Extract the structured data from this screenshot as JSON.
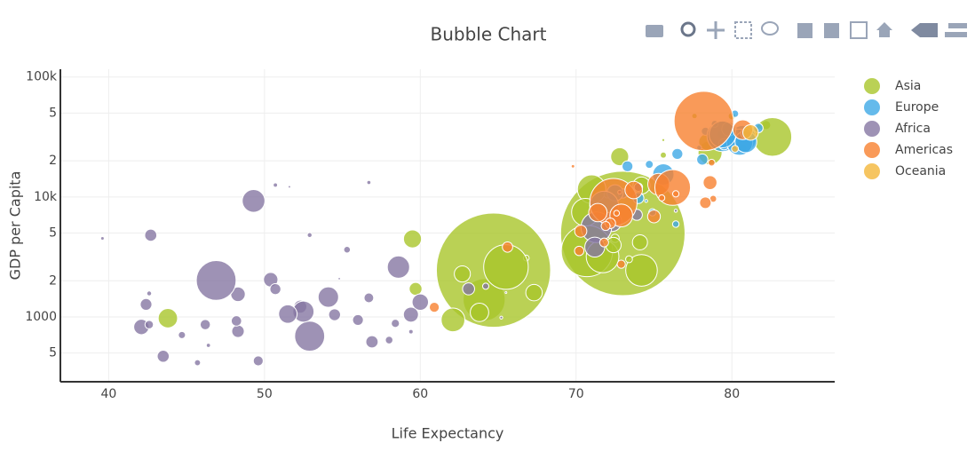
{
  "chart_data": {
    "type": "scatter",
    "title": "Bubble Chart",
    "x_label": "Life Expectancy",
    "y_label": "GDP per Capita",
    "xlim": [
      36.9,
      86.6
    ],
    "xticks": [
      40,
      50,
      60,
      70,
      80
    ],
    "ylim": [
      288,
      116000
    ],
    "log_y": true,
    "grid": true,
    "legend": "right",
    "yticks": [
      {
        "value": 500,
        "label": "5"
      },
      1000,
      {
        "value": 2000,
        "label": "2"
      },
      {
        "value": 5000,
        "label": "5"
      },
      {
        "value": 10000,
        "label": "10k"
      },
      {
        "value": 20000,
        "label": "2"
      },
      {
        "value": 50000,
        "label": "5"
      },
      {
        "value": 100000,
        "label": "100k"
      }
    ],
    "series": [
      {
        "name": "Asia",
        "color": "#a9c62b",
        "x": [
          43.8,
          75.6,
          64.1,
          59.7,
          73.0,
          82.2,
          64.7,
          70.7,
          71.0,
          59.5,
          80.7,
          82.6,
          72.5,
          67.3,
          78.6,
          77.6,
          72.0,
          74.2,
          66.8,
          62.1,
          63.8,
          75.6,
          65.5,
          71.7,
          72.8,
          80.0,
          72.4,
          74.1,
          78.4,
          70.6,
          74.2,
          73.4,
          62.7
        ],
        "values": [
          975,
          29796,
          1391,
          1714,
          4959,
          39725,
          2452,
          3541,
          11606,
          4471,
          25523,
          31656,
          4519,
          1593,
          23348,
          47307,
          10461,
          12452,
          3096,
          944,
          1091,
          22316,
          2606,
          3190,
          21655,
          47143,
          3970,
          4185,
          28718,
          7458,
          2442,
          3025,
          2281
        ],
        "sizes": [
          31.9,
          0.7,
          150,
          14,
          1318,
          7,
          1110,
          224,
          69,
          27.5,
          6.4,
          127,
          6,
          23,
          49,
          2.5,
          3.9,
          24.8,
          2.9,
          47.8,
          28.9,
          3.2,
          169,
          91,
          27.6,
          4.5,
          20,
          19.3,
          23,
          65,
          85,
          4,
          22
        ]
      },
      {
        "name": "Europe",
        "color": "#3fa9e6",
        "x": [
          76.4,
          79.8,
          79.4,
          74.9,
          73.0,
          75.7,
          76.5,
          78.3,
          79.3,
          80.7,
          79.4,
          79.5,
          73.3,
          81.8,
          78.9,
          80.5,
          74.5,
          79.8,
          80.2,
          75.6,
          78.1,
          72.5,
          74.0,
          74.7,
          77.9,
          80.9,
          80.9,
          81.7,
          71.8,
          79.4
        ],
        "values": [
          5937,
          36126,
          33693,
          7446,
          10681,
          14619,
          22833,
          35278,
          33207,
          30470,
          32170,
          27538,
          18009,
          36181,
          40676,
          28570,
          9254,
          36798,
          49357,
          15390,
          20510,
          10808,
          9787,
          18678,
          25768,
          28821,
          33860,
          37506,
          8458,
          33203
        ],
        "sizes": [
          3.6,
          8.2,
          10.4,
          4.5,
          7.3,
          4.5,
          10.2,
          5.5,
          5.2,
          61,
          82,
          10.7,
          10,
          0.3,
          4.1,
          58,
          0.7,
          16.6,
          4.6,
          38.5,
          10.6,
          22.3,
          10.2,
          5.4,
          2,
          40.4,
          9,
          7.6,
          71,
          60.8
        ]
      },
      {
        "name": "Africa",
        "color": "#8677a3",
        "x": [
          72.3,
          42.7,
          56.7,
          50.7,
          52.3,
          49.6,
          50.4,
          44.7,
          50.7,
          65.2,
          55.3,
          48.3,
          54.8,
          71.3,
          51.6,
          58.0,
          52.9,
          56.7,
          59.4,
          60.0,
          56.0,
          46.4,
          54.1,
          42.6,
          45.7,
          74.0,
          59.4,
          48.3,
          54.5,
          64.2,
          72.8,
          71.2,
          42.1,
          52.9,
          56.9,
          46.9,
          76.4,
          46.2,
          65.5,
          63.1,
          42.6,
          48.2,
          49.3,
          58.6,
          39.6,
          52.5,
          58.4,
          73.9,
          51.5,
          42.4,
          43.5
        ],
        "values": [
          6223,
          4797,
          1441,
          12570,
          1217,
          430,
          2042,
          706,
          1704,
          986,
          3633,
          1545,
          2082,
          5581,
          12154,
          641,
          691,
          13206,
          753,
          1328,
          943,
          579,
          1463,
          1569,
          415,
          12057,
          1044,
          759,
          1042,
          1803,
          10957,
          3820,
          824,
          4811,
          620,
          2014,
          7670,
          863,
          1598,
          1712,
          863,
          926,
          9270,
          2602,
          4513,
          1107,
          883,
          7093,
          1056,
          1271,
          470
        ],
        "sizes": [
          33,
          12.4,
          8,
          1.6,
          14.3,
          8.4,
          17.7,
          4.4,
          10.2,
          0.7,
          3.8,
          18,
          0.5,
          80,
          0.55,
          4.9,
          76.5,
          1.45,
          1.7,
          22.9,
          9.9,
          1.5,
          35.6,
          2,
          3.2,
          6,
          19.2,
          13.3,
          12,
          3.3,
          1.25,
          33.8,
          20,
          2,
          12.9,
          135,
          0.8,
          8.9,
          0.2,
          12.3,
          6.1,
          9.1,
          44,
          42.3,
          1.1,
          38,
          5.7,
          10.3,
          29,
          11.7,
          12.3
        ]
      },
      {
        "name": "Americas",
        "color": "#f7812f",
        "x": [
          75.3,
          65.6,
          72.4,
          80.7,
          78.6,
          72.9,
          78.8,
          78.3,
          72.2,
          75.0,
          71.9,
          70.3,
          60.9,
          70.2,
          72.6,
          76.2,
          72.9,
          75.5,
          71.8,
          71.4,
          78.7,
          69.8,
          78.2,
          76.4,
          73.7
        ],
        "values": [
          12779,
          3822,
          9066,
          36319,
          13172,
          7007,
          9645,
          8948,
          6025,
          6873,
          5728,
          5186,
          1202,
          3548,
          7321,
          11978,
          2749,
          9809,
          4173,
          7409,
          19329,
          18009,
          42952,
          10611,
          11416
        ],
        "sizes": [
          40,
          9.1,
          190,
          33,
          16.3,
          44,
          4.1,
          11.4,
          9.3,
          13.8,
          6.9,
          12.6,
          8.5,
          7.5,
          2.8,
          108,
          5.7,
          3.2,
          6.7,
          28.7,
          3.9,
          1.06,
          301,
          3.4,
          26
        ]
      },
      {
        "name": "Oceania",
        "color": "#f4b63a",
        "x": [
          81.2,
          80.2
        ],
        "values": [
          34435,
          25185
        ],
        "sizes": [
          20.4,
          4.1
        ]
      }
    ]
  }
}
